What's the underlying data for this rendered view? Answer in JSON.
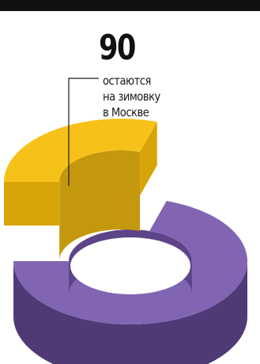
{
  "chart_data": {
    "type": "pie",
    "style": "3d-donut",
    "slices": [
      {
        "value": 90,
        "color": "#f6c219",
        "side_color": "#d7a408",
        "inner_color": "#c4980c"
      },
      {
        "value": 210,
        "color": "#8265b2",
        "side_color": "#4f3a75",
        "inner_color": "#5d4488"
      }
    ],
    "total": 300,
    "annotation": {
      "value": "90",
      "lines": [
        "остаются",
        "на зимовку",
        "в Москве"
      ]
    }
  }
}
